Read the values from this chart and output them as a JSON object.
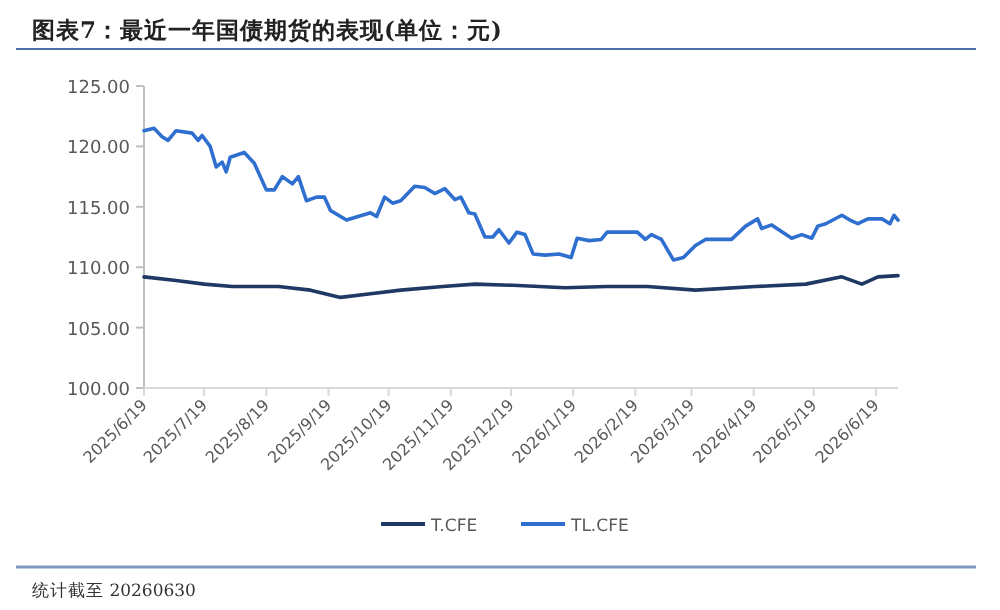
{
  "chart_data": {
    "type": "line",
    "title": "图表7：最近一年国债期货的表现(单位：元)",
    "annotations": [
      "统计截至 20260630"
    ],
    "xlim": [
      "2025-06-19",
      "2026-06-30"
    ],
    "xticks": [
      {
        "value": "2025-06-19",
        "label": "2025/6/19"
      },
      {
        "value": "2025-07-19",
        "label": "2025/7/19"
      },
      {
        "value": "2025-08-19",
        "label": "2025/8/19"
      },
      {
        "value": "2025-09-19",
        "label": "2025/9/19"
      },
      {
        "value": "2025-10-19",
        "label": "2025/10/19"
      },
      {
        "value": "2025-11-19",
        "label": "2025/11/19"
      },
      {
        "value": "2025-12-19",
        "label": "2025/12/19"
      },
      {
        "value": "2026-01-19",
        "label": "2026/1/19"
      },
      {
        "value": "2026-02-19",
        "label": "2026/2/19"
      },
      {
        "value": "2026-03-19",
        "label": "2026/3/19"
      },
      {
        "value": "2026-04-19",
        "label": "2026/4/19"
      },
      {
        "value": "2026-05-19",
        "label": "2026/5/19"
      },
      {
        "value": "2026-06-19",
        "label": "2026/6/19"
      }
    ],
    "ylim": [
      100,
      125
    ],
    "yticks": [
      {
        "value": 100,
        "label": "100.00"
      },
      {
        "value": 105,
        "label": "105.00"
      },
      {
        "value": 110,
        "label": "110.00"
      },
      {
        "value": 115,
        "label": "115.00"
      },
      {
        "value": 120,
        "label": "120.00"
      },
      {
        "value": 125,
        "label": "125.00"
      }
    ],
    "legend": "bottom",
    "series": [
      {
        "name": "T.CFE",
        "color": "#203864",
        "x": [
          "2025-06-19",
          "2025-07-05",
          "2025-07-19",
          "2025-08-02",
          "2025-08-25",
          "2025-09-10",
          "2025-09-25",
          "2025-10-10",
          "2025-10-25",
          "2025-11-15",
          "2025-12-01",
          "2025-12-20",
          "2026-01-15",
          "2026-02-05",
          "2026-02-25",
          "2026-03-21",
          "2026-04-20",
          "2026-05-15",
          "2026-06-02",
          "2026-06-12",
          "2026-06-20",
          "2026-06-30"
        ],
        "values": [
          109.2,
          108.9,
          108.6,
          108.4,
          108.4,
          108.1,
          107.5,
          107.8,
          108.1,
          108.4,
          108.6,
          108.5,
          108.3,
          108.4,
          108.4,
          108.1,
          108.4,
          108.6,
          109.2,
          108.6,
          109.2,
          109.3
        ]
      },
      {
        "name": "TL.CFE",
        "color": "#2f6fd0",
        "x": [
          "2025-06-19",
          "2025-06-24",
          "2025-06-28",
          "2025-07-01",
          "2025-07-05",
          "2025-07-13",
          "2025-07-16",
          "2025-07-18",
          "2025-07-22",
          "2025-07-25",
          "2025-07-28",
          "2025-07-30",
          "2025-08-01",
          "2025-08-08",
          "2025-08-13",
          "2025-08-19",
          "2025-08-23",
          "2025-08-27",
          "2025-09-01",
          "2025-09-04",
          "2025-09-08",
          "2025-09-13",
          "2025-09-17",
          "2025-09-20",
          "2025-09-25",
          "2025-09-28",
          "2025-10-10",
          "2025-10-13",
          "2025-10-17",
          "2025-10-21",
          "2025-10-25",
          "2025-11-01",
          "2025-11-06",
          "2025-11-11",
          "2025-11-16",
          "2025-11-21",
          "2025-11-24",
          "2025-11-28",
          "2025-12-01",
          "2025-12-06",
          "2025-12-10",
          "2025-12-13",
          "2025-12-18",
          "2025-12-22",
          "2025-12-26",
          "2025-12-30",
          "2026-01-05",
          "2026-01-12",
          "2026-01-18",
          "2026-01-21",
          "2026-01-27",
          "2026-02-02",
          "2026-02-05",
          "2026-02-20",
          "2026-02-24",
          "2026-02-27",
          "2026-03-04",
          "2026-03-10",
          "2026-03-15",
          "2026-03-21",
          "2026-03-26",
          "2026-04-08",
          "2026-04-15",
          "2026-04-21",
          "2026-04-23",
          "2026-04-28",
          "2026-05-08",
          "2026-05-13",
          "2026-05-18",
          "2026-05-21",
          "2026-05-25",
          "2026-06-02",
          "2026-06-06",
          "2026-06-10",
          "2026-06-15",
          "2026-06-22",
          "2026-06-26",
          "2026-06-28",
          "2026-06-30"
        ],
        "values": [
          121.3,
          121.5,
          120.8,
          120.5,
          121.3,
          121.1,
          120.5,
          120.9,
          120.0,
          118.3,
          118.7,
          117.9,
          119.1,
          119.5,
          118.6,
          116.4,
          116.4,
          117.5,
          116.9,
          117.5,
          115.5,
          115.8,
          115.8,
          114.7,
          114.2,
          113.9,
          114.5,
          114.2,
          115.8,
          115.3,
          115.5,
          116.7,
          116.6,
          116.1,
          116.5,
          115.6,
          115.8,
          114.5,
          114.4,
          112.5,
          112.5,
          113.1,
          112.0,
          112.9,
          112.7,
          111.1,
          111.0,
          111.1,
          110.8,
          112.4,
          112.2,
          112.3,
          112.9,
          112.9,
          112.3,
          112.7,
          112.3,
          110.6,
          110.8,
          111.8,
          112.3,
          112.3,
          113.4,
          114.0,
          113.2,
          113.5,
          112.4,
          112.7,
          112.4,
          113.4,
          113.6,
          114.3,
          113.9,
          113.6,
          114.0,
          114.0,
          113.6,
          114.3,
          113.9
        ]
      }
    ]
  }
}
